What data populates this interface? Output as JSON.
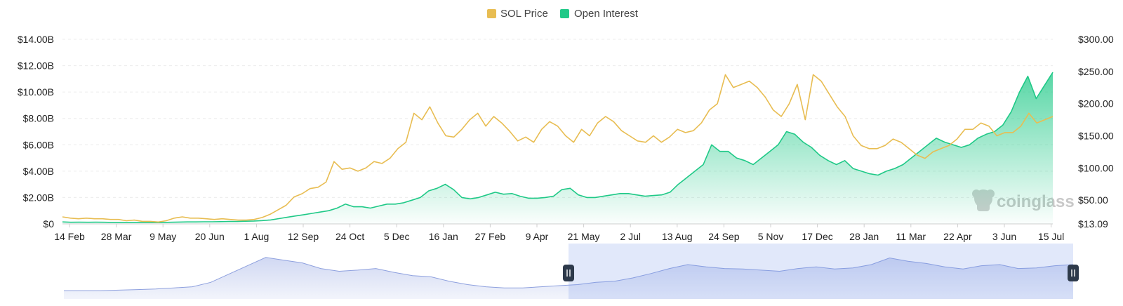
{
  "chart_data": {
    "type": "line",
    "title": "",
    "legend": {
      "position": "top-center",
      "items": [
        {
          "label": "SOL Price",
          "color": "#e8bd52"
        },
        {
          "label": "Open Interest",
          "color": "#1fc987"
        }
      ]
    },
    "x_ticks": [
      "14 Feb",
      "28 Mar",
      "9 May",
      "20 Jun",
      "1 Aug",
      "12 Sep",
      "24 Oct",
      "5 Dec",
      "16 Jan",
      "27 Feb",
      "9 Apr",
      "21 May",
      "2 Jul",
      "13 Aug",
      "24 Sep",
      "5 Nov",
      "17 Dec",
      "28 Jan",
      "11 Mar",
      "22 Apr",
      "3 Jun",
      "15 Jul"
    ],
    "y_left": {
      "ticks": [
        "$0",
        "$2.00B",
        "$4.00B",
        "$6.00B",
        "$8.00B",
        "$10.00B",
        "$12.00B",
        "$14.00B"
      ],
      "min": 0,
      "max": 14
    },
    "y_right": {
      "ticks": [
        "$13.09",
        "$50.00",
        "$100.00",
        "$150.00",
        "$200.00",
        "$250.00",
        "$300.00"
      ],
      "min": 13.09,
      "max": 300
    },
    "grid": true,
    "series": [
      {
        "name": "SOL Price",
        "axis": "right",
        "color": "#e8bd52",
        "values": [
          24,
          22,
          21,
          22,
          21,
          21,
          20,
          20,
          18,
          19,
          17,
          17,
          16,
          18,
          22,
          24,
          22,
          22,
          21,
          20,
          21,
          20,
          19,
          19,
          20,
          23,
          28,
          35,
          42,
          55,
          60,
          68,
          70,
          78,
          110,
          98,
          100,
          95,
          100,
          110,
          107,
          115,
          130,
          140,
          185,
          175,
          195,
          170,
          150,
          148,
          160,
          175,
          185,
          165,
          180,
          170,
          157,
          142,
          148,
          140,
          160,
          172,
          165,
          150,
          140,
          160,
          150,
          170,
          180,
          172,
          158,
          150,
          142,
          140,
          150,
          140,
          148,
          160,
          155,
          158,
          170,
          190,
          200,
          245,
          225,
          230,
          235,
          225,
          210,
          190,
          180,
          200,
          230,
          175,
          245,
          235,
          215,
          195,
          180,
          150,
          135,
          130,
          130,
          135,
          145,
          140,
          130,
          120,
          115,
          125,
          130,
          135,
          145,
          160,
          160,
          170,
          165,
          150,
          155,
          155,
          165,
          185,
          170,
          175,
          180
        ]
      },
      {
        "name": "Open Interest",
        "axis": "left",
        "color": "#1fc987",
        "values": [
          0.15,
          0.12,
          0.13,
          0.12,
          0.13,
          0.12,
          0.11,
          0.1,
          0.1,
          0.1,
          0.1,
          0.1,
          0.1,
          0.12,
          0.14,
          0.15,
          0.15,
          0.16,
          0.16,
          0.17,
          0.18,
          0.18,
          0.2,
          0.22,
          0.25,
          0.3,
          0.4,
          0.5,
          0.6,
          0.7,
          0.8,
          0.9,
          1.0,
          1.2,
          1.5,
          1.3,
          1.3,
          1.2,
          1.35,
          1.5,
          1.5,
          1.6,
          1.8,
          2.0,
          2.5,
          2.7,
          3.0,
          2.6,
          2.0,
          1.9,
          2.0,
          2.2,
          2.4,
          2.25,
          2.3,
          2.1,
          1.95,
          1.95,
          2.0,
          2.1,
          2.6,
          2.7,
          2.2,
          2.0,
          2.0,
          2.1,
          2.2,
          2.3,
          2.3,
          2.2,
          2.1,
          2.15,
          2.2,
          2.4,
          3.0,
          3.5,
          4.0,
          4.5,
          6.0,
          5.5,
          5.5,
          5.0,
          4.8,
          4.5,
          5.0,
          5.5,
          6.0,
          7.0,
          6.8,
          6.2,
          5.8,
          5.2,
          4.8,
          4.5,
          4.8,
          4.2,
          4.0,
          3.8,
          3.7,
          4.0,
          4.2,
          4.5,
          5.0,
          5.5,
          6.0,
          6.5,
          6.2,
          6.0,
          5.8,
          6.0,
          6.5,
          6.8,
          7.0,
          7.5,
          8.5,
          10.0,
          11.2,
          9.5,
          10.5,
          11.5
        ]
      }
    ]
  },
  "navigator": {
    "values": [
      0.15,
      0.15,
      0.15,
      0.16,
      0.17,
      0.18,
      0.2,
      0.22,
      0.3,
      0.45,
      0.6,
      0.75,
      0.7,
      0.65,
      0.55,
      0.5,
      0.52,
      0.55,
      0.48,
      0.42,
      0.4,
      0.32,
      0.26,
      0.22,
      0.2,
      0.2,
      0.22,
      0.24,
      0.26,
      0.3,
      0.32,
      0.38,
      0.46,
      0.55,
      0.62,
      0.58,
      0.55,
      0.54,
      0.52,
      0.5,
      0.55,
      0.58,
      0.54,
      0.56,
      0.62,
      0.74,
      0.68,
      0.64,
      0.58,
      0.54,
      0.6,
      0.62,
      0.55,
      0.56,
      0.6,
      0.62
    ],
    "selection_start": 0.5,
    "selection_end": 1.0
  },
  "watermark": {
    "text": "coinglass"
  }
}
